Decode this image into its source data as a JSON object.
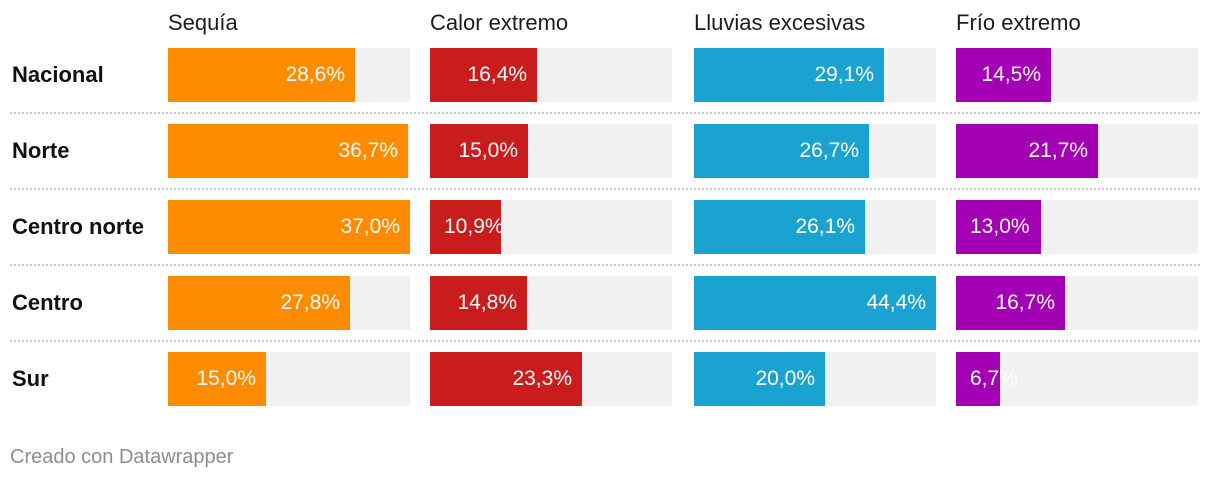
{
  "chart_data": {
    "type": "bar",
    "title": "",
    "xlim": [
      0,
      37
    ],
    "columns": [
      {
        "name": "Sequía",
        "color": "#ff8c00"
      },
      {
        "name": "Calor extremo",
        "color": "#c91d1d"
      },
      {
        "name": "Lluvias excesivas",
        "color": "#1aa3d0"
      },
      {
        "name": "Frío extremo",
        "color": "#a300b6"
      }
    ],
    "rows": [
      {
        "label": "Nacional",
        "values": [
          28.6,
          16.4,
          29.1,
          14.5
        ],
        "display": [
          "28,6%",
          "16,4%",
          "29,1%",
          "14,5%"
        ]
      },
      {
        "label": "Norte",
        "values": [
          36.7,
          15.0,
          26.7,
          21.7
        ],
        "display": [
          "36,7%",
          "15,0%",
          "26,7%",
          "21,7%"
        ]
      },
      {
        "label": "Centro norte",
        "values": [
          37.0,
          10.9,
          26.1,
          13.0
        ],
        "display": [
          "37,0%",
          "10,9%",
          "26,1%",
          "13,0%"
        ]
      },
      {
        "label": "Centro",
        "values": [
          27.8,
          14.8,
          44.4,
          16.7
        ],
        "display": [
          "27,8%",
          "14,8%",
          "44,4%",
          "16,7%"
        ]
      },
      {
        "label": "Sur",
        "values": [
          15.0,
          23.3,
          20.0,
          6.7
        ],
        "display": [
          "15,0%",
          "23,3%",
          "20,0%",
          "6,7%"
        ]
      }
    ]
  },
  "footer": {
    "credit": "Creado con Datawrapper"
  }
}
